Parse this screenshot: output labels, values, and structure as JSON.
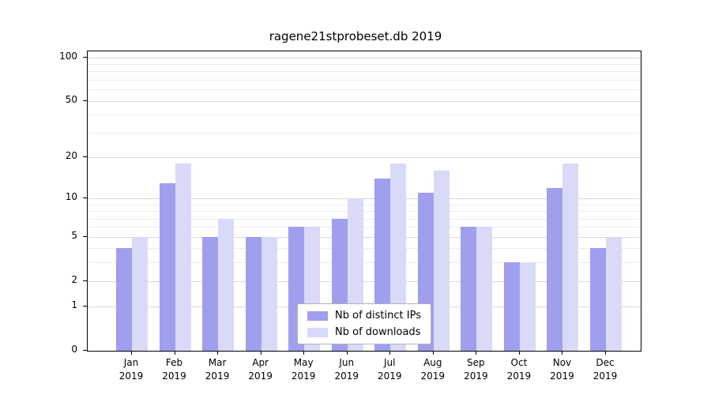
{
  "title": "ragene21stprobeset.db 2019",
  "colors": {
    "distinct_ips": "#9f9fee",
    "downloads": "#d9d9f8",
    "grid_major": "#d9d9d9",
    "grid_minor": "#ececec",
    "axis": "#000000"
  },
  "chart_data": {
    "type": "bar",
    "title": "ragene21stprobeset.db 2019",
    "categories": [
      "Jan",
      "Feb",
      "Mar",
      "Apr",
      "May",
      "Jun",
      "Jul",
      "Aug",
      "Sep",
      "Oct",
      "Nov",
      "Dec"
    ],
    "year_label": "2019",
    "series": [
      {
        "name": "Nb of distinct IPs",
        "values": [
          4,
          13,
          5,
          5,
          6,
          7,
          14,
          11,
          6,
          3,
          12,
          4
        ]
      },
      {
        "name": "Nb of downloads",
        "values": [
          5,
          18,
          7,
          5,
          6,
          10,
          18,
          16,
          6,
          3,
          18,
          5
        ]
      }
    ],
    "yticks": [
      0,
      1,
      2,
      5,
      10,
      20,
      50,
      100
    ],
    "minor_yticks": [
      3,
      4,
      6,
      7,
      8,
      9,
      30,
      40,
      60,
      70,
      80,
      90
    ],
    "scale": "log1p",
    "ylim_top": 110,
    "grid": true,
    "legend_position": "inside-bottom-center"
  }
}
